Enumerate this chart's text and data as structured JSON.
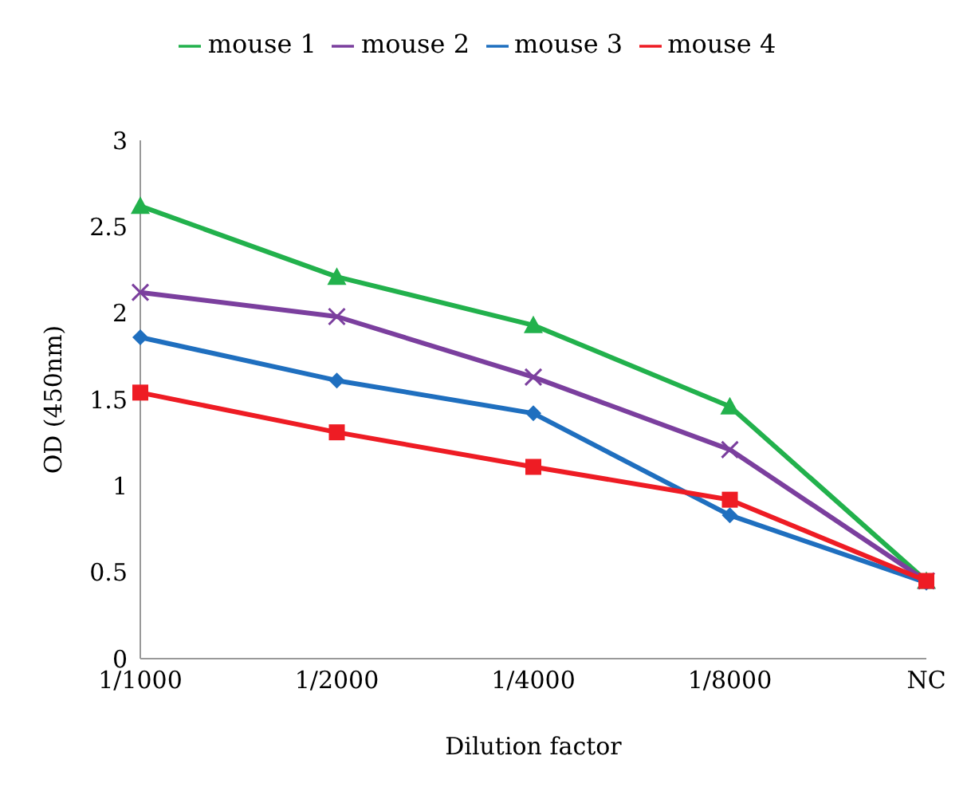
{
  "chart_data": {
    "type": "line",
    "xlabel": "Dilution factor",
    "ylabel": "OD (450nm)",
    "categories": [
      "1/1000",
      "1/2000",
      "1/4000",
      "1/8000",
      "NC"
    ],
    "series": [
      {
        "name": "mouse 1",
        "color": "#22b14c",
        "marker": "triangle",
        "values": [
          2.62,
          2.21,
          1.93,
          1.46,
          0.45
        ]
      },
      {
        "name": "mouse 2",
        "color": "#7b3f9e",
        "marker": "cross",
        "values": [
          2.12,
          1.98,
          1.63,
          1.21,
          0.45
        ]
      },
      {
        "name": "mouse 3",
        "color": "#1f6fbf",
        "marker": "diamond",
        "values": [
          1.86,
          1.61,
          1.42,
          0.83,
          0.44
        ]
      },
      {
        "name": "mouse 4",
        "color": "#ee1c24",
        "marker": "square",
        "values": [
          1.54,
          1.31,
          1.11,
          0.92,
          0.45
        ]
      }
    ],
    "ylim": [
      0,
      3
    ],
    "yticks": [
      0,
      0.5,
      1,
      1.5,
      2,
      2.5,
      3
    ],
    "grid": false,
    "legend": "top"
  }
}
